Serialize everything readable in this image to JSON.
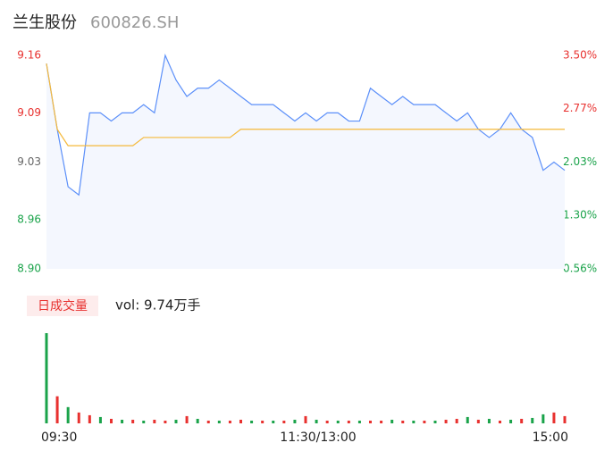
{
  "chart_data": {
    "type": "line",
    "title": "兰生股份",
    "subtitle": "600826.SH",
    "categories": [
      "09:30",
      null,
      null,
      null,
      null,
      null,
      null,
      null,
      null,
      null,
      null,
      null,
      null,
      null,
      null,
      null,
      null,
      null,
      null,
      null,
      null,
      null,
      null,
      null,
      "11:30/13:00",
      null,
      null,
      null,
      null,
      null,
      null,
      null,
      null,
      null,
      null,
      null,
      null,
      null,
      null,
      null,
      null,
      null,
      null,
      null,
      null,
      null,
      null,
      null,
      "15:00"
    ],
    "series": [
      {
        "name": "price",
        "color": "#5b8ff9",
        "values": [
          9.15,
          9.07,
          9.0,
          8.99,
          9.09,
          9.09,
          9.08,
          9.09,
          9.09,
          9.1,
          9.09,
          9.16,
          9.13,
          9.11,
          9.12,
          9.12,
          9.13,
          9.12,
          9.11,
          9.1,
          9.1,
          9.1,
          9.09,
          9.08,
          9.09,
          9.08,
          9.09,
          9.09,
          9.08,
          9.08,
          9.12,
          9.11,
          9.1,
          9.11,
          9.1,
          9.1,
          9.1,
          9.09,
          9.08,
          9.09,
          9.07,
          9.06,
          9.07,
          9.09,
          9.07,
          9.06,
          9.02,
          9.03,
          9.02
        ]
      },
      {
        "name": "average",
        "color": "#f5b93a",
        "values": [
          9.15,
          9.07,
          9.05,
          9.05,
          9.05,
          9.05,
          9.05,
          9.05,
          9.05,
          9.06,
          9.06,
          9.06,
          9.06,
          9.06,
          9.06,
          9.06,
          9.06,
          9.06,
          9.07,
          9.07,
          9.07,
          9.07,
          9.07,
          9.07,
          9.07,
          9.07,
          9.07,
          9.07,
          9.07,
          9.07,
          9.07,
          9.07,
          9.07,
          9.07,
          9.07,
          9.07,
          9.07,
          9.07,
          9.07,
          9.07,
          9.07,
          9.07,
          9.07,
          9.07,
          9.07,
          9.07,
          9.07,
          9.07,
          9.07
        ]
      }
    ],
    "ylim": [
      8.9,
      9.16
    ],
    "yticks": [
      9.16,
      9.09,
      9.03,
      8.96,
      {
        "value": 8.9,
        "label": "8.90"
      }
    ],
    "ytick_colors": [
      "#e8312f",
      "#e8312f",
      "#666666",
      "#1aa34a",
      "#1aa34a"
    ],
    "y2lim": [
      0.56,
      3.5
    ],
    "y2ticks": [
      {
        "value": 3.5,
        "label": "3.50%"
      },
      {
        "value": 2.77,
        "label": "2.77%"
      },
      {
        "value": 2.03,
        "label": "2.03%"
      },
      {
        "value": 1.3,
        "label": "1.30%"
      },
      {
        "value": 0.56,
        "label": "0.56%"
      }
    ],
    "y2tick_colors": [
      "#e8312f",
      "#e8312f",
      "#1aa34a",
      "#1aa34a",
      "#1aa34a"
    ],
    "area_color": "#f4f7fe",
    "volume": {
      "type": "bar",
      "label": "日成交量",
      "annotation": "vol: 9.74万手",
      "ylim": [
        0,
        100
      ],
      "values": [
        100,
        30,
        18,
        12,
        9,
        7,
        5,
        4,
        4,
        3,
        4,
        3,
        4,
        8,
        5,
        3,
        3,
        3,
        4,
        3,
        3,
        3,
        3,
        4,
        8,
        4,
        3,
        3,
        3,
        3,
        3,
        3,
        4,
        3,
        3,
        3,
        3,
        4,
        5,
        7,
        4,
        5,
        3,
        4,
        5,
        6,
        10,
        12,
        8
      ],
      "colors": [
        "#1aa34a",
        "#e8312f",
        "#1aa34a",
        "#e8312f",
        "#e8312f",
        "#1aa34a",
        "#e8312f",
        "#1aa34a",
        "#e8312f",
        "#1aa34a",
        "#e8312f",
        "#e8312f",
        "#1aa34a",
        "#e8312f",
        "#1aa34a",
        "#e8312f",
        "#1aa34a",
        "#e8312f",
        "#e8312f",
        "#1aa34a",
        "#e8312f",
        "#1aa34a",
        "#e8312f",
        "#1aa34a",
        "#e8312f",
        "#1aa34a",
        "#e8312f",
        "#1aa34a",
        "#e8312f",
        "#1aa34a",
        "#e8312f",
        "#e8312f",
        "#1aa34a",
        "#e8312f",
        "#1aa34a",
        "#e8312f",
        "#1aa34a",
        "#e8312f",
        "#e8312f",
        "#1aa34a",
        "#e8312f",
        "#1aa34a",
        "#e8312f",
        "#1aa34a",
        "#e8312f",
        "#1aa34a",
        "#1aa34a",
        "#e8312f",
        "#e8312f"
      ]
    }
  }
}
